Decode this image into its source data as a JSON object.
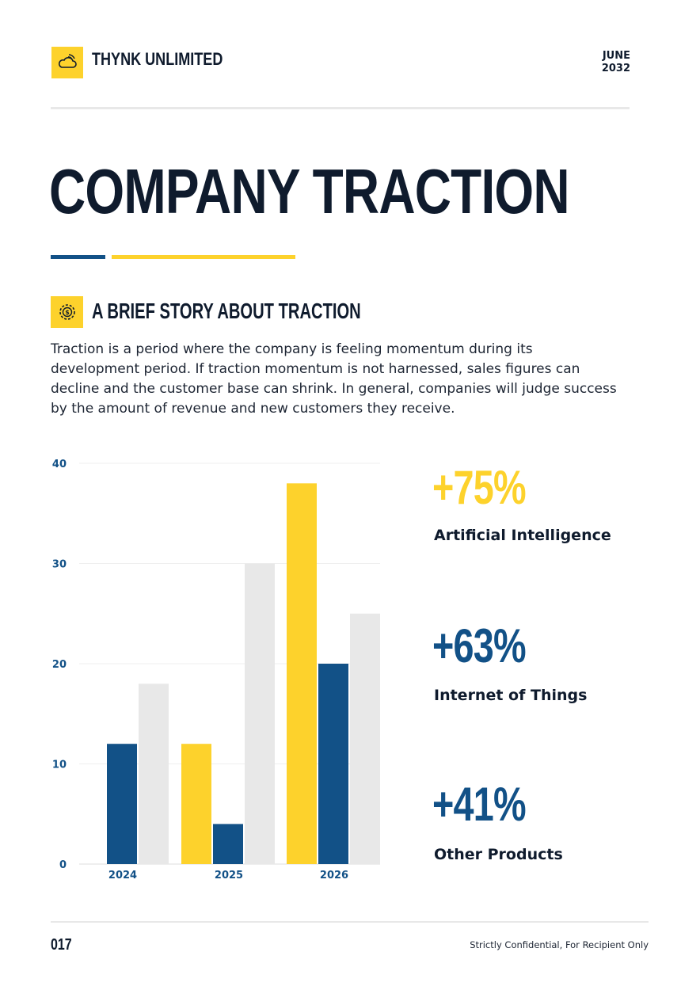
{
  "header": {
    "brand": "THYNK UNLIMITED",
    "date_month": "JUNE",
    "date_year": "2032",
    "logo_icon": "cloud-icon"
  },
  "title": "COMPANY TRACTION",
  "section": {
    "icon": "gear-coin-icon",
    "heading": "A BRIEF STORY ABOUT TRACTION",
    "body": "Traction is a period where the company is feeling momentum during its development period. If traction momentum is not harnessed, sales figures can decline and the customer base can shrink. In general, companies will judge success by the amount of revenue and new customers they receive."
  },
  "stats": [
    {
      "value": "+75%",
      "label": "Artificial Intelligence",
      "color": "#fdd22c"
    },
    {
      "value": "+63%",
      "label": "Internet of Things",
      "color": "#125187"
    },
    {
      "value": "+41%",
      "label": "Other Products",
      "color": "#125187"
    }
  ],
  "colors": {
    "navy": "#125187",
    "yellow": "#fdd22c",
    "gray": "#e8e8e8",
    "dark": "#0f1b2d"
  },
  "chart_data": {
    "type": "bar",
    "categories": [
      "2024",
      "2025",
      "2026"
    ],
    "series": [
      {
        "color": "#fdd22c",
        "values": [
          null,
          12,
          38
        ]
      },
      {
        "color": "#125187",
        "values": [
          12,
          4,
          20
        ]
      },
      {
        "color": "#e8e8e8",
        "values": [
          18,
          30,
          25
        ]
      }
    ],
    "yticks": [
      0,
      10,
      20,
      30,
      40
    ],
    "ylim": [
      0,
      40
    ],
    "grid": true
  },
  "footer": {
    "page": "017",
    "note": "Strictly Confidential, For Recipient Only"
  }
}
